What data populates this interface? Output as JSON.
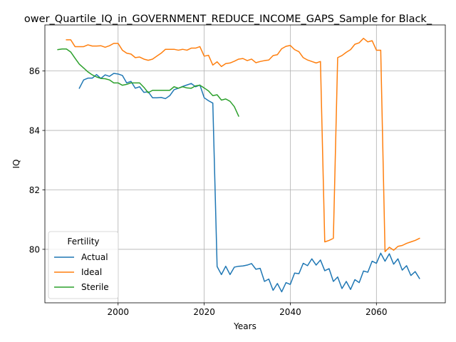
{
  "chart_data": {
    "type": "line",
    "title": "ower_Quartile_IQ_in_GOVERNMENT_REDUCE_INCOME_GAPS_Sample for Black_",
    "xlabel": "Years",
    "ylabel": "IQ",
    "xlim": [
      1983,
      2076
    ],
    "ylim": [
      78.2,
      87.55
    ],
    "xticks": [
      2000,
      2020,
      2040,
      2060
    ],
    "yticks": [
      80,
      82,
      84,
      86
    ],
    "grid": true,
    "legend": {
      "title": "Fertility",
      "placement": "lower-left"
    },
    "series": [
      {
        "name": "Actual",
        "color": "#1f77b4",
        "points": [
          [
            1991,
            85.42
          ],
          [
            1992,
            85.7
          ],
          [
            1993,
            85.76
          ],
          [
            1994,
            85.76
          ],
          [
            1995,
            85.88
          ],
          [
            1996,
            85.75
          ],
          [
            1997,
            85.87
          ],
          [
            1998,
            85.82
          ],
          [
            1999,
            85.92
          ],
          [
            2000,
            85.9
          ],
          [
            2001,
            85.85
          ],
          [
            2002,
            85.6
          ],
          [
            2003,
            85.65
          ],
          [
            2004,
            85.42
          ],
          [
            2005,
            85.47
          ],
          [
            2006,
            85.28
          ],
          [
            2007,
            85.3
          ],
          [
            2008,
            85.1
          ],
          [
            2009,
            85.1
          ],
          [
            2010,
            85.11
          ],
          [
            2011,
            85.07
          ],
          [
            2012,
            85.17
          ],
          [
            2013,
            85.37
          ],
          [
            2014,
            85.42
          ],
          [
            2015,
            85.48
          ],
          [
            2016,
            85.53
          ],
          [
            2017,
            85.58
          ],
          [
            2018,
            85.47
          ],
          [
            2019,
            85.53
          ],
          [
            2020,
            85.1
          ],
          [
            2021,
            85.0
          ],
          [
            2022,
            84.92
          ],
          [
            2023,
            79.42
          ],
          [
            2024,
            79.15
          ],
          [
            2025,
            79.43
          ],
          [
            2026,
            79.15
          ],
          [
            2027,
            79.4
          ],
          [
            2028,
            79.43
          ],
          [
            2029,
            79.44
          ],
          [
            2030,
            79.47
          ],
          [
            2031,
            79.52
          ],
          [
            2032,
            79.33
          ],
          [
            2033,
            79.36
          ],
          [
            2034,
            78.92
          ],
          [
            2035,
            79.0
          ],
          [
            2036,
            78.62
          ],
          [
            2037,
            78.85
          ],
          [
            2038,
            78.57
          ],
          [
            2039,
            78.88
          ],
          [
            2040,
            78.82
          ],
          [
            2041,
            79.2
          ],
          [
            2042,
            79.18
          ],
          [
            2043,
            79.53
          ],
          [
            2044,
            79.45
          ],
          [
            2045,
            79.68
          ],
          [
            2046,
            79.47
          ],
          [
            2047,
            79.64
          ],
          [
            2048,
            79.28
          ],
          [
            2049,
            79.35
          ],
          [
            2050,
            78.92
          ],
          [
            2051,
            79.07
          ],
          [
            2052,
            78.68
          ],
          [
            2053,
            78.92
          ],
          [
            2054,
            78.65
          ],
          [
            2055,
            78.98
          ],
          [
            2056,
            78.88
          ],
          [
            2057,
            79.27
          ],
          [
            2058,
            79.23
          ],
          [
            2059,
            79.6
          ],
          [
            2060,
            79.53
          ],
          [
            2061,
            79.87
          ],
          [
            2062,
            79.6
          ],
          [
            2063,
            79.85
          ],
          [
            2064,
            79.5
          ],
          [
            2065,
            79.68
          ],
          [
            2066,
            79.3
          ],
          [
            2067,
            79.45
          ],
          [
            2068,
            79.12
          ],
          [
            2069,
            79.25
          ],
          [
            2070,
            79.02
          ]
        ]
      },
      {
        "name": "Ideal",
        "color": "#ff7f0e",
        "points": [
          [
            1988,
            87.05
          ],
          [
            1989,
            87.05
          ],
          [
            1990,
            86.82
          ],
          [
            1991,
            86.82
          ],
          [
            1992,
            86.82
          ],
          [
            1993,
            86.88
          ],
          [
            1994,
            86.84
          ],
          [
            1995,
            86.84
          ],
          [
            1996,
            86.85
          ],
          [
            1997,
            86.8
          ],
          [
            1998,
            86.85
          ],
          [
            1999,
            86.93
          ],
          [
            2000,
            86.93
          ],
          [
            2001,
            86.7
          ],
          [
            2002,
            86.6
          ],
          [
            2003,
            86.57
          ],
          [
            2004,
            86.45
          ],
          [
            2005,
            86.47
          ],
          [
            2006,
            86.4
          ],
          [
            2007,
            86.36
          ],
          [
            2008,
            86.4
          ],
          [
            2009,
            86.5
          ],
          [
            2010,
            86.6
          ],
          [
            2011,
            86.73
          ],
          [
            2012,
            86.73
          ],
          [
            2013,
            86.73
          ],
          [
            2014,
            86.7
          ],
          [
            2015,
            86.73
          ],
          [
            2016,
            86.7
          ],
          [
            2017,
            86.77
          ],
          [
            2018,
            86.77
          ],
          [
            2019,
            86.82
          ],
          [
            2020,
            86.5
          ],
          [
            2021,
            86.53
          ],
          [
            2022,
            86.2
          ],
          [
            2023,
            86.31
          ],
          [
            2024,
            86.15
          ],
          [
            2025,
            86.25
          ],
          [
            2026,
            86.27
          ],
          [
            2027,
            86.33
          ],
          [
            2028,
            86.4
          ],
          [
            2029,
            86.42
          ],
          [
            2030,
            86.35
          ],
          [
            2031,
            86.4
          ],
          [
            2032,
            86.28
          ],
          [
            2033,
            86.32
          ],
          [
            2034,
            86.35
          ],
          [
            2035,
            86.37
          ],
          [
            2036,
            86.52
          ],
          [
            2037,
            86.55
          ],
          [
            2038,
            86.75
          ],
          [
            2039,
            86.83
          ],
          [
            2040,
            86.86
          ],
          [
            2041,
            86.72
          ],
          [
            2042,
            86.65
          ],
          [
            2043,
            86.45
          ],
          [
            2044,
            86.37
          ],
          [
            2045,
            86.32
          ],
          [
            2046,
            86.27
          ],
          [
            2047,
            86.32
          ],
          [
            2048,
            80.25
          ],
          [
            2049,
            80.3
          ],
          [
            2050,
            80.37
          ],
          [
            2051,
            86.45
          ],
          [
            2052,
            86.52
          ],
          [
            2053,
            86.63
          ],
          [
            2054,
            86.72
          ],
          [
            2055,
            86.9
          ],
          [
            2056,
            86.95
          ],
          [
            2057,
            87.1
          ],
          [
            2058,
            86.98
          ],
          [
            2059,
            87.02
          ],
          [
            2060,
            86.7
          ],
          [
            2061,
            86.7
          ],
          [
            2062,
            79.92
          ],
          [
            2063,
            80.07
          ],
          [
            2064,
            79.97
          ],
          [
            2065,
            80.1
          ],
          [
            2066,
            80.13
          ],
          [
            2067,
            80.2
          ],
          [
            2068,
            80.25
          ],
          [
            2069,
            80.3
          ],
          [
            2070,
            80.37
          ]
        ]
      },
      {
        "name": "Sterile",
        "color": "#2ca02c",
        "points": [
          [
            1986,
            86.72
          ],
          [
            1987,
            86.74
          ],
          [
            1988,
            86.74
          ],
          [
            1989,
            86.64
          ],
          [
            1990,
            86.43
          ],
          [
            1991,
            86.23
          ],
          [
            1992,
            86.1
          ],
          [
            1993,
            85.97
          ],
          [
            1994,
            85.87
          ],
          [
            1995,
            85.8
          ],
          [
            1996,
            85.75
          ],
          [
            1997,
            85.74
          ],
          [
            1998,
            85.7
          ],
          [
            1999,
            85.6
          ],
          [
            2000,
            85.6
          ],
          [
            2001,
            85.52
          ],
          [
            2002,
            85.55
          ],
          [
            2003,
            85.6
          ],
          [
            2004,
            85.6
          ],
          [
            2005,
            85.6
          ],
          [
            2006,
            85.45
          ],
          [
            2007,
            85.27
          ],
          [
            2008,
            85.35
          ],
          [
            2009,
            85.35
          ],
          [
            2010,
            85.35
          ],
          [
            2011,
            85.35
          ],
          [
            2012,
            85.35
          ],
          [
            2013,
            85.47
          ],
          [
            2014,
            85.42
          ],
          [
            2015,
            85.47
          ],
          [
            2016,
            85.43
          ],
          [
            2017,
            85.42
          ],
          [
            2018,
            85.5
          ],
          [
            2019,
            85.52
          ],
          [
            2020,
            85.43
          ],
          [
            2021,
            85.33
          ],
          [
            2022,
            85.17
          ],
          [
            2023,
            85.2
          ],
          [
            2024,
            85.02
          ],
          [
            2025,
            85.06
          ],
          [
            2026,
            84.98
          ],
          [
            2027,
            84.8
          ],
          [
            2028,
            84.48
          ]
        ]
      }
    ]
  }
}
